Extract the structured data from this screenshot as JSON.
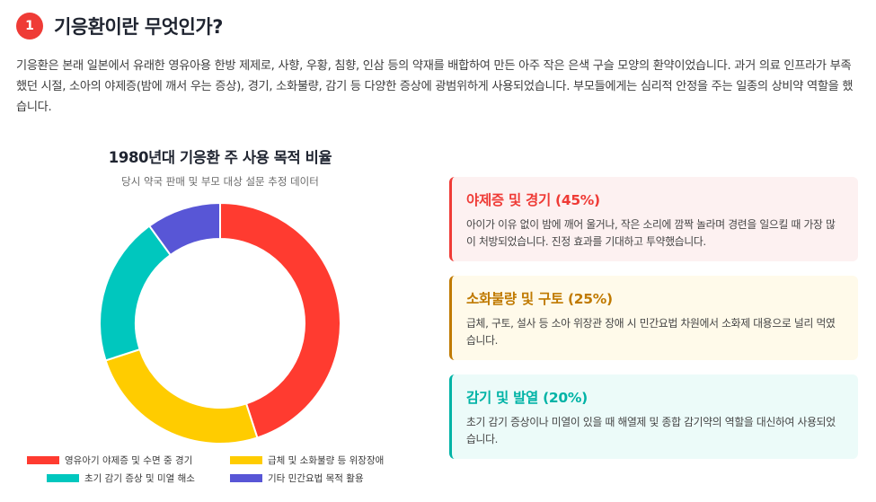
{
  "section": {
    "number": "1",
    "title": "기응환이란 무엇인가?",
    "intro": "기응환은 본래 일본에서 유래한 영유아용 한방 제제로, 사향, 우황, 침향, 인삼 등의 약재를 배합하여 만든 아주 작은 은색 구슬 모양의 환약이었습니다. 과거 의료 인프라가 부족했던 시절, 소아의 야제증(밤에 깨서 우는 증상), 경기, 소화불량, 감기 등 다양한 증상에 광범위하게 사용되었습니다. 부모들에게는 심리적 안정을 주는 일종의 상비약 역할을 했습니다."
  },
  "chart_data": {
    "type": "pie",
    "title": "1980년대 기응환 주 사용 목적 비율",
    "subtitle": "당시 약국 판매 및 부모 대상 설문 추정 데이터",
    "categories": [
      "영유아기 야제증 및 수면 중 경기",
      "급체 및 소화불량 등 위장장애",
      "초기 감기 증상 및 미열 해소",
      "기타 민간요법 목적 활용"
    ],
    "values": [
      45,
      25,
      20,
      10
    ],
    "colors": [
      "#ff3b30",
      "#ffcc00",
      "#00c7be",
      "#5856d6"
    ],
    "legend_position": "bottom",
    "donut": true
  },
  "cards": [
    {
      "title": "야제증 및 경기 (45%)",
      "text": "아이가 이유 없이 밤에 깨어 울거나, 작은 소리에 깜짝 놀라며 경련을 일으킬 때 가장 많이 처방되었습니다. 진정 효과를 기대하고 투약했습니다.",
      "accent": "#ef3b36",
      "background": "#fdf1f1"
    },
    {
      "title": "소화불량 및 구토 (25%)",
      "text": "급체, 구토, 설사 등 소아 위장관 장애 시 민간요법 차원에서 소화제 대용으로 널리 먹였습니다.",
      "accent": "#c07a00",
      "background": "#fffaea"
    },
    {
      "title": "감기 및 발열 (20%)",
      "text": "초기 감기 증상이나 미열이 있을 때 해열제 및 종합 감기약의 역할을 대신하여 사용되었습니다.",
      "accent": "#00b3a6",
      "background": "#ecfbf9"
    }
  ]
}
